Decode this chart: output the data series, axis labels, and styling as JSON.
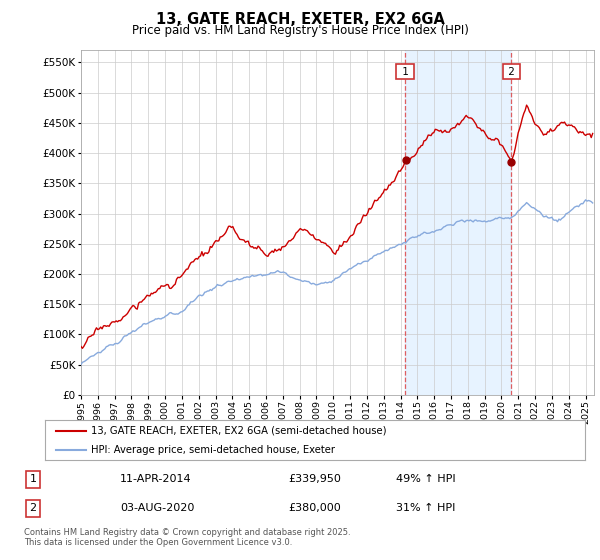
{
  "title": "13, GATE REACH, EXETER, EX2 6GA",
  "subtitle": "Price paid vs. HM Land Registry's House Price Index (HPI)",
  "ytick_values": [
    0,
    50000,
    100000,
    150000,
    200000,
    250000,
    300000,
    350000,
    400000,
    450000,
    500000,
    550000
  ],
  "ylim": [
    0,
    570000
  ],
  "xlim_start": 1995.0,
  "xlim_end": 2025.5,
  "red_color": "#cc0000",
  "blue_color": "#88aadd",
  "blue_fill_color": "#ddeeff",
  "marker1_x": 2014.27,
  "marker2_x": 2020.58,
  "marker1_y": 339950,
  "marker2_y": 380000,
  "purchase1_date": "11-APR-2014",
  "purchase1_price": "£339,950",
  "purchase1_hpi": "49% ↑ HPI",
  "purchase2_date": "03-AUG-2020",
  "purchase2_price": "£380,000",
  "purchase2_hpi": "31% ↑ HPI",
  "legend_label_red": "13, GATE REACH, EXETER, EX2 6GA (semi-detached house)",
  "legend_label_blue": "HPI: Average price, semi-detached house, Exeter",
  "footer": "Contains HM Land Registry data © Crown copyright and database right 2025.\nThis data is licensed under the Open Government Licence v3.0.",
  "background_color": "#ffffff",
  "grid_color": "#cccccc"
}
